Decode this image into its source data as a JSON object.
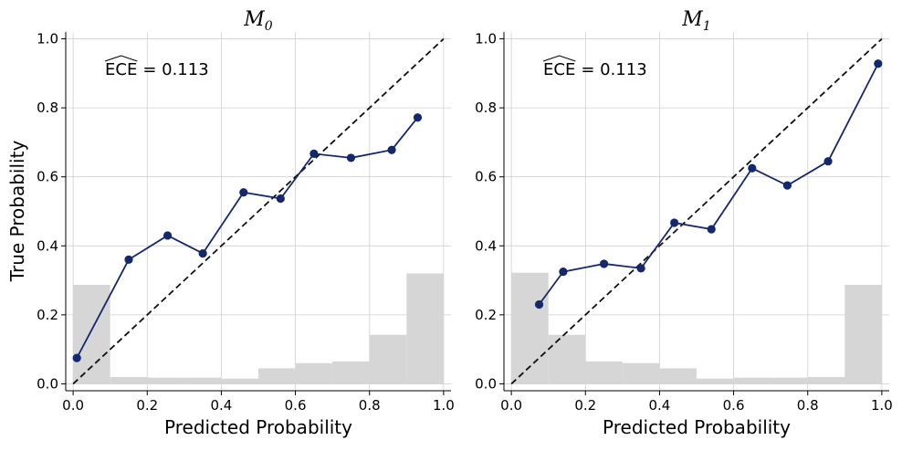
{
  "figure": {
    "ylabel": "True Probability"
  },
  "chart_data": [
    {
      "type": "line",
      "title": "M",
      "title_subscript": "0",
      "xlabel": "Predicted Probability",
      "ylabel": "True Probability",
      "xlim": [
        -0.02,
        1.02
      ],
      "ylim": [
        -0.02,
        1.02
      ],
      "xticks": [
        "0.0",
        "0.2",
        "0.4",
        "0.6",
        "0.8",
        "1.0"
      ],
      "yticks": [
        "0.0",
        "0.2",
        "0.4",
        "0.6",
        "0.8",
        "1.0"
      ],
      "grid": true,
      "ece_label": "ECE",
      "ece_value": "= 0.113",
      "reliability_curve": {
        "x": [
          0.01,
          0.15,
          0.255,
          0.35,
          0.46,
          0.56,
          0.65,
          0.75,
          0.86,
          0.93
        ],
        "y": [
          0.075,
          0.36,
          0.43,
          0.378,
          0.555,
          0.537,
          0.667,
          0.655,
          0.678,
          0.772
        ]
      },
      "diagonal": {
        "x": [
          0,
          1
        ],
        "y": [
          0,
          1
        ]
      },
      "histogram": {
        "bin_edges": [
          0.0,
          0.1,
          0.2,
          0.3,
          0.4,
          0.5,
          0.6,
          0.7,
          0.8,
          0.9,
          1.0
        ],
        "heights": [
          0.287,
          0.02,
          0.018,
          0.018,
          0.015,
          0.045,
          0.06,
          0.065,
          0.142,
          0.32
        ]
      }
    },
    {
      "type": "line",
      "title": "M",
      "title_subscript": "1",
      "xlabel": "Predicted Probability",
      "ylabel": "",
      "xlim": [
        -0.02,
        1.02
      ],
      "ylim": [
        -0.02,
        1.02
      ],
      "xticks": [
        "0.0",
        "0.2",
        "0.4",
        "0.6",
        "0.8",
        "1.0"
      ],
      "yticks": [
        "0.0",
        "0.2",
        "0.4",
        "0.6",
        "0.8",
        "1.0"
      ],
      "grid": true,
      "ece_label": "ECE",
      "ece_value": "= 0.113",
      "reliability_curve": {
        "x": [
          0.075,
          0.14,
          0.25,
          0.35,
          0.44,
          0.54,
          0.65,
          0.745,
          0.855,
          0.99
        ],
        "y": [
          0.23,
          0.325,
          0.348,
          0.335,
          0.467,
          0.448,
          0.625,
          0.575,
          0.645,
          0.928
        ]
      },
      "diagonal": {
        "x": [
          0,
          1
        ],
        "y": [
          0,
          1
        ]
      },
      "histogram": {
        "bin_edges": [
          0.0,
          0.1,
          0.2,
          0.3,
          0.4,
          0.5,
          0.6,
          0.7,
          0.8,
          0.9,
          1.0
        ],
        "heights": [
          0.322,
          0.142,
          0.065,
          0.06,
          0.045,
          0.015,
          0.018,
          0.018,
          0.02,
          0.287
        ]
      }
    }
  ]
}
